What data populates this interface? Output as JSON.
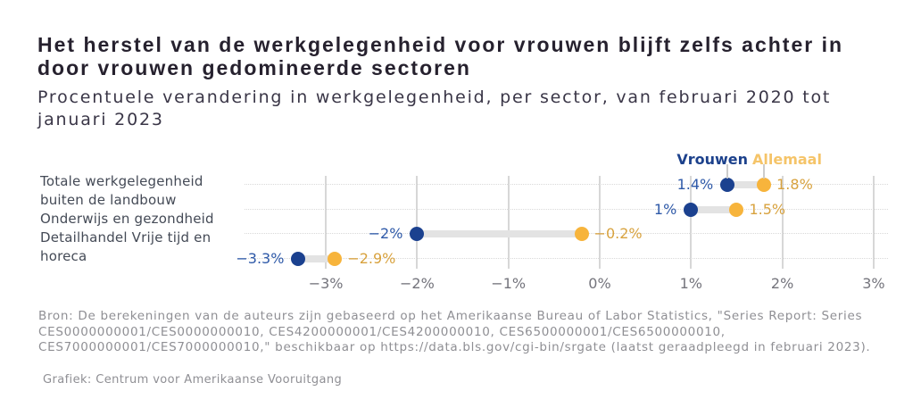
{
  "header": {
    "title": "Het herstel van de werkgelegenheid voor vrouwen blijft zelfs achter in\ndoor vrouwen gedomineerde sectoren",
    "subtitle": "Procentuele verandering in werkgelegenheid, per sector, van februari 2020 tot\njanuari 2023"
  },
  "legend": {
    "vrouwen_label": "Vrouwen",
    "allemaal_label": "Allemaal"
  },
  "chart_data": {
    "type": "dumbbell",
    "title": "Het herstel van de werkgelegenheid voor vrouwen blijft zelfs achter in door vrouwen gedomineerde sectoren",
    "subtitle": "Procentuele verandering in werkgelegenheid, per sector, van februari 2020 tot januari 2023",
    "categories": [
      "Totale werkgelegenheid buiten de landbouw",
      "Onderwijs en gezondheid",
      "Detailhandel",
      "Vrije tijd en horeca"
    ],
    "category_label_block": "Totale werkgelegenheid\nbuiten de landbouw\nOnderwijs en gezondheid\nDetailhandel Vrije tijd en\nhoreca",
    "series": [
      {
        "name": "Vrouwen",
        "color": "#1b418f",
        "values": [
          1.4,
          1.0,
          -2.0,
          -3.3
        ],
        "labels": [
          "1.4%",
          "1%",
          "−2%",
          "−3.3%"
        ]
      },
      {
        "name": "Allemaal",
        "color": "#f7b43c",
        "values": [
          1.8,
          1.5,
          -0.2,
          -2.9
        ],
        "labels": [
          "1.8%",
          "1.5%",
          "−0.2%",
          "−2.9%"
        ]
      }
    ],
    "x_axis": {
      "min": -3,
      "max": 3,
      "unit": "%",
      "ticks": [
        {
          "value": -3,
          "label": "−3%"
        },
        {
          "value": -2,
          "label": "−2%"
        },
        {
          "value": -1,
          "label": "−1%"
        },
        {
          "value": 0,
          "label": "0%"
        },
        {
          "value": 1,
          "label": "1%"
        },
        {
          "value": 2,
          "label": "2%"
        },
        {
          "value": 3,
          "label": "3%"
        }
      ]
    },
    "grid": {
      "vertical": "solid",
      "horizontal": "dotted"
    },
    "legend_position": "top-right"
  },
  "footer": {
    "source": "Bron: De berekeningen van de auteurs zijn gebaseerd op het Amerikaanse Bureau of Labor Statistics, \"Series Report: Series\nCES0000000001/CES0000000010, CES4200000001/CES4200000010, CES6500000001/CES6500000010,\nCES7000000001/CES7000000010,\" beschikbaar op https://data.bls.gov/cgi-bin/srgate (laatst geraadpleegd in februari 2023).",
    "credit": "Grafiek: Centrum voor Amerikaanse Vooruitgang"
  }
}
